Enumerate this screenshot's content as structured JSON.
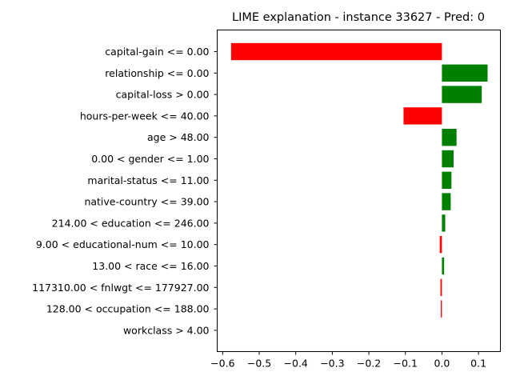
{
  "chart_data": {
    "type": "bar",
    "orientation": "horizontal",
    "title": "LIME explanation - instance 33627 - Pred: 0",
    "xlabel": "",
    "ylabel": "",
    "xlim": [
      -0.615,
      0.16
    ],
    "xticks": [
      {
        "value": -0.6,
        "label": "−0.6"
      },
      {
        "value": -0.5,
        "label": "−0.5"
      },
      {
        "value": -0.4,
        "label": "−0.4"
      },
      {
        "value": -0.3,
        "label": "−0.3"
      },
      {
        "value": -0.2,
        "label": "−0.2"
      },
      {
        "value": -0.1,
        "label": "−0.1"
      },
      {
        "value": 0.0,
        "label": "0.0"
      },
      {
        "value": 0.1,
        "label": "0.1"
      }
    ],
    "grid": false,
    "legend": "none",
    "positive_color": "#008000",
    "negative_color": "#ff0000",
    "categories": [
      "capital-gain <= 0.00",
      "relationship <= 0.00",
      "capital-loss > 0.00",
      "hours-per-week <= 40.00",
      "age > 48.00",
      "0.00 < gender <= 1.00",
      "marital-status <= 11.00",
      "native-country <= 39.00",
      "214.00 < education <= 246.00",
      "9.00 < educational-num <= 10.00",
      "13.00 < race <= 16.00",
      "117310.00 < fnlwgt <= 177927.00",
      "128.00 < occupation <= 188.00",
      "workclass > 4.00"
    ],
    "values": [
      -0.577,
      0.125,
      0.109,
      -0.105,
      0.04,
      0.032,
      0.026,
      0.024,
      0.009,
      -0.006,
      0.006,
      -0.004,
      -0.003,
      0.0
    ]
  }
}
